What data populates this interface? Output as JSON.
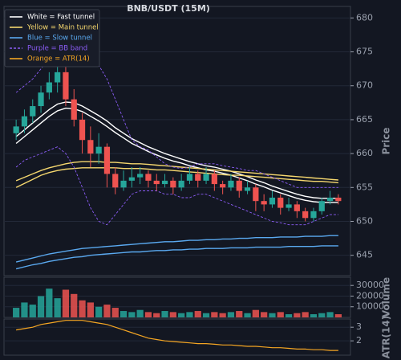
{
  "chart_data": [
    {
      "type": "candlestick",
      "title": "BNB/USDT (15M)",
      "ylabel": "Price",
      "open": [
        663,
        664,
        665.5,
        667,
        669,
        670.5,
        672,
        668,
        665,
        662,
        660,
        661,
        657,
        655,
        656,
        656.5,
        657,
        656,
        655.5,
        656,
        655,
        656,
        657,
        656,
        657,
        655.5,
        655,
        656,
        654.5,
        655,
        653,
        652.5,
        653.5,
        652,
        652.5,
        651.5,
        650.5,
        651.5,
        653,
        653.5
      ],
      "high": [
        665,
        666.5,
        668,
        670,
        672,
        674,
        673.5,
        669.5,
        666,
        664,
        663,
        661.5,
        658,
        657.5,
        658,
        658,
        657.5,
        657,
        657,
        656.5,
        657,
        658,
        657.5,
        658,
        657.5,
        656,
        657,
        656.5,
        656,
        655.5,
        654,
        654.5,
        654,
        653.5,
        653,
        652,
        652,
        653.5,
        654.5,
        654
      ],
      "low": [
        662,
        663,
        664.5,
        666,
        668,
        669,
        667,
        664,
        660,
        658,
        658.5,
        655,
        654,
        654.5,
        655,
        655.5,
        655,
        654.5,
        655,
        654,
        654.5,
        655.5,
        655,
        655.5,
        654.5,
        654,
        654.5,
        653.5,
        654,
        651.5,
        651.5,
        652,
        651,
        651.5,
        650.5,
        650,
        650,
        651,
        652.5,
        652.5
      ],
      "close": [
        664,
        665.5,
        667,
        669,
        670.5,
        672,
        668,
        665,
        662,
        660,
        661,
        657,
        655,
        656,
        656.5,
        657,
        656,
        655.5,
        656,
        655,
        656,
        657,
        656,
        657,
        655.5,
        655,
        656,
        654.5,
        655,
        653,
        652.5,
        653.5,
        652,
        652.5,
        651.5,
        650.5,
        651.5,
        653,
        653.5,
        653
      ],
      "up_color": "#26a69a",
      "down_color": "#ef5350",
      "series": [
        {
          "name": "White = Fast tunnel",
          "color": "#ffffff",
          "upper": [
            662.5,
            663.5,
            664.5,
            665.5,
            666.5,
            667.3,
            667.6,
            667.5,
            667,
            666.3,
            665.6,
            664.8,
            663.8,
            663,
            662.2,
            661.6,
            661,
            660.5,
            660,
            659.6,
            659.2,
            658.8,
            658.5,
            658.2,
            658,
            657.7,
            657.4,
            657,
            656.6,
            656.1,
            655.7,
            655.2,
            654.8,
            654.4,
            654,
            653.7,
            653.5,
            653.4,
            653.4,
            653.4
          ],
          "lower": [
            661.5,
            662.5,
            663.5,
            664.5,
            665.5,
            666.3,
            666.7,
            666.6,
            666.2,
            665.5,
            664.8,
            664,
            663.1,
            662.3,
            661.5,
            660.9,
            660.3,
            659.8,
            659.3,
            658.9,
            658.6,
            658.2,
            657.9,
            657.6,
            657.4,
            657.1,
            656.8,
            656.4,
            656,
            655.5,
            655.1,
            654.6,
            654.2,
            653.8,
            653.4,
            653.1,
            652.9,
            652.8,
            652.8,
            652.8
          ]
        },
        {
          "name": "Yellow = Main tunnel",
          "color": "#f5d76e",
          "upper": [
            656,
            656.5,
            657,
            657.5,
            657.9,
            658.2,
            658.5,
            658.7,
            658.8,
            658.8,
            658.8,
            658.7,
            658.7,
            658.6,
            658.5,
            658.5,
            658.4,
            658.3,
            658.2,
            658.1,
            658,
            657.9,
            657.8,
            657.7,
            657.6,
            657.5,
            657.4,
            657.3,
            657.2,
            657.1,
            657,
            656.9,
            656.8,
            656.7,
            656.6,
            656.5,
            656.4,
            656.3,
            656.2,
            656.1
          ],
          "lower": [
            655,
            655.6,
            656.2,
            656.8,
            657.2,
            657.5,
            657.7,
            657.8,
            657.9,
            657.9,
            657.9,
            657.9,
            657.9,
            657.8,
            657.8,
            657.8,
            657.7,
            657.6,
            657.6,
            657.5,
            657.4,
            657.3,
            657.2,
            657.1,
            657,
            656.9,
            656.8,
            656.8,
            656.7,
            656.6,
            656.5,
            656.4,
            656.3,
            656.2,
            656.1,
            656,
            655.9,
            655.9,
            655.8,
            655.7
          ]
        },
        {
          "name": "Blue = Slow tunnel",
          "color": "#5aa9f0",
          "upper": [
            644,
            644.3,
            644.6,
            644.9,
            645.2,
            645.4,
            645.6,
            645.8,
            646,
            646.1,
            646.2,
            646.3,
            646.4,
            646.5,
            646.6,
            646.7,
            646.8,
            646.9,
            647,
            647,
            647.1,
            647.2,
            647.2,
            647.3,
            647.3,
            647.4,
            647.4,
            647.5,
            647.5,
            647.6,
            647.6,
            647.6,
            647.7,
            647.7,
            647.7,
            647.8,
            647.8,
            647.8,
            647.9,
            647.9
          ],
          "lower": [
            643,
            643.3,
            643.6,
            643.8,
            644.1,
            644.3,
            644.5,
            644.7,
            644.8,
            645,
            645.1,
            645.2,
            645.3,
            645.4,
            645.5,
            645.5,
            645.6,
            645.7,
            645.7,
            645.8,
            645.8,
            645.9,
            645.9,
            646,
            646,
            646,
            646.1,
            646.1,
            646.1,
            646.2,
            646.2,
            646.2,
            646.2,
            646.3,
            646.3,
            646.3,
            646.3,
            646.4,
            646.4,
            646.4
          ]
        },
        {
          "name": "Purple = BB band",
          "color": "#8b5cf6",
          "dashed": true,
          "upper": [
            669,
            670,
            671,
            672.5,
            674,
            675.5,
            676.5,
            676.8,
            676.5,
            675,
            673,
            671,
            668,
            665,
            662,
            661,
            660.5,
            659.5,
            658.5,
            658,
            657.8,
            658,
            658.5,
            658.5,
            658.5,
            658.2,
            658,
            657.8,
            657.5,
            657.5,
            657,
            656.5,
            656,
            655.5,
            655,
            655,
            655,
            655,
            655,
            655
          ],
          "lower": [
            658,
            659,
            659.5,
            660,
            660.5,
            661,
            660,
            658,
            655,
            652,
            650,
            649.5,
            651,
            652.5,
            654,
            654.5,
            654.5,
            654.5,
            654,
            654,
            653.5,
            653.5,
            654,
            654,
            653.5,
            653,
            652.5,
            652,
            651.5,
            651,
            650.5,
            650,
            649.8,
            649.5,
            649.5,
            649.5,
            650,
            650.5,
            651,
            651
          ]
        }
      ],
      "ylim": [
        642,
        681.7
      ],
      "yticks": [
        645,
        650,
        655,
        660,
        665,
        670,
        675,
        680
      ],
      "grid": true
    },
    {
      "type": "bar",
      "ylabel": "Volume",
      "values": [
        9000,
        14000,
        12000,
        20000,
        27000,
        18000,
        26000,
        22000,
        16000,
        14000,
        10000,
        12000,
        9000,
        6000,
        5000,
        7000,
        5000,
        4000,
        6000,
        5000,
        4000,
        5000,
        6000,
        4000,
        5000,
        4000,
        5000,
        6000,
        4000,
        7000,
        5000,
        4000,
        5000,
        3000,
        4000,
        5000,
        3000,
        4000,
        5000,
        3000
      ],
      "ylim": [
        0,
        37700
      ],
      "yticks": [
        10000,
        20000,
        30000
      ],
      "grid": true
    },
    {
      "type": "line",
      "ylabel": "ATR(14)",
      "series": [
        {
          "name": "Orange = ATR(14)",
          "color": "#f5a623",
          "values": [
            2.8,
            2.9,
            3.0,
            3.2,
            3.3,
            3.4,
            3.5,
            3.5,
            3.5,
            3.4,
            3.3,
            3.2,
            3.0,
            2.8,
            2.6,
            2.4,
            2.2,
            2.1,
            2.0,
            1.95,
            1.9,
            1.85,
            1.8,
            1.8,
            1.75,
            1.7,
            1.7,
            1.65,
            1.6,
            1.6,
            1.55,
            1.5,
            1.5,
            1.45,
            1.4,
            1.4,
            1.35,
            1.35,
            1.3,
            1.3
          ]
        }
      ],
      "ylim": [
        0.95,
        3.6
      ],
      "yticks": [
        2,
        3
      ],
      "grid": true
    }
  ]
}
